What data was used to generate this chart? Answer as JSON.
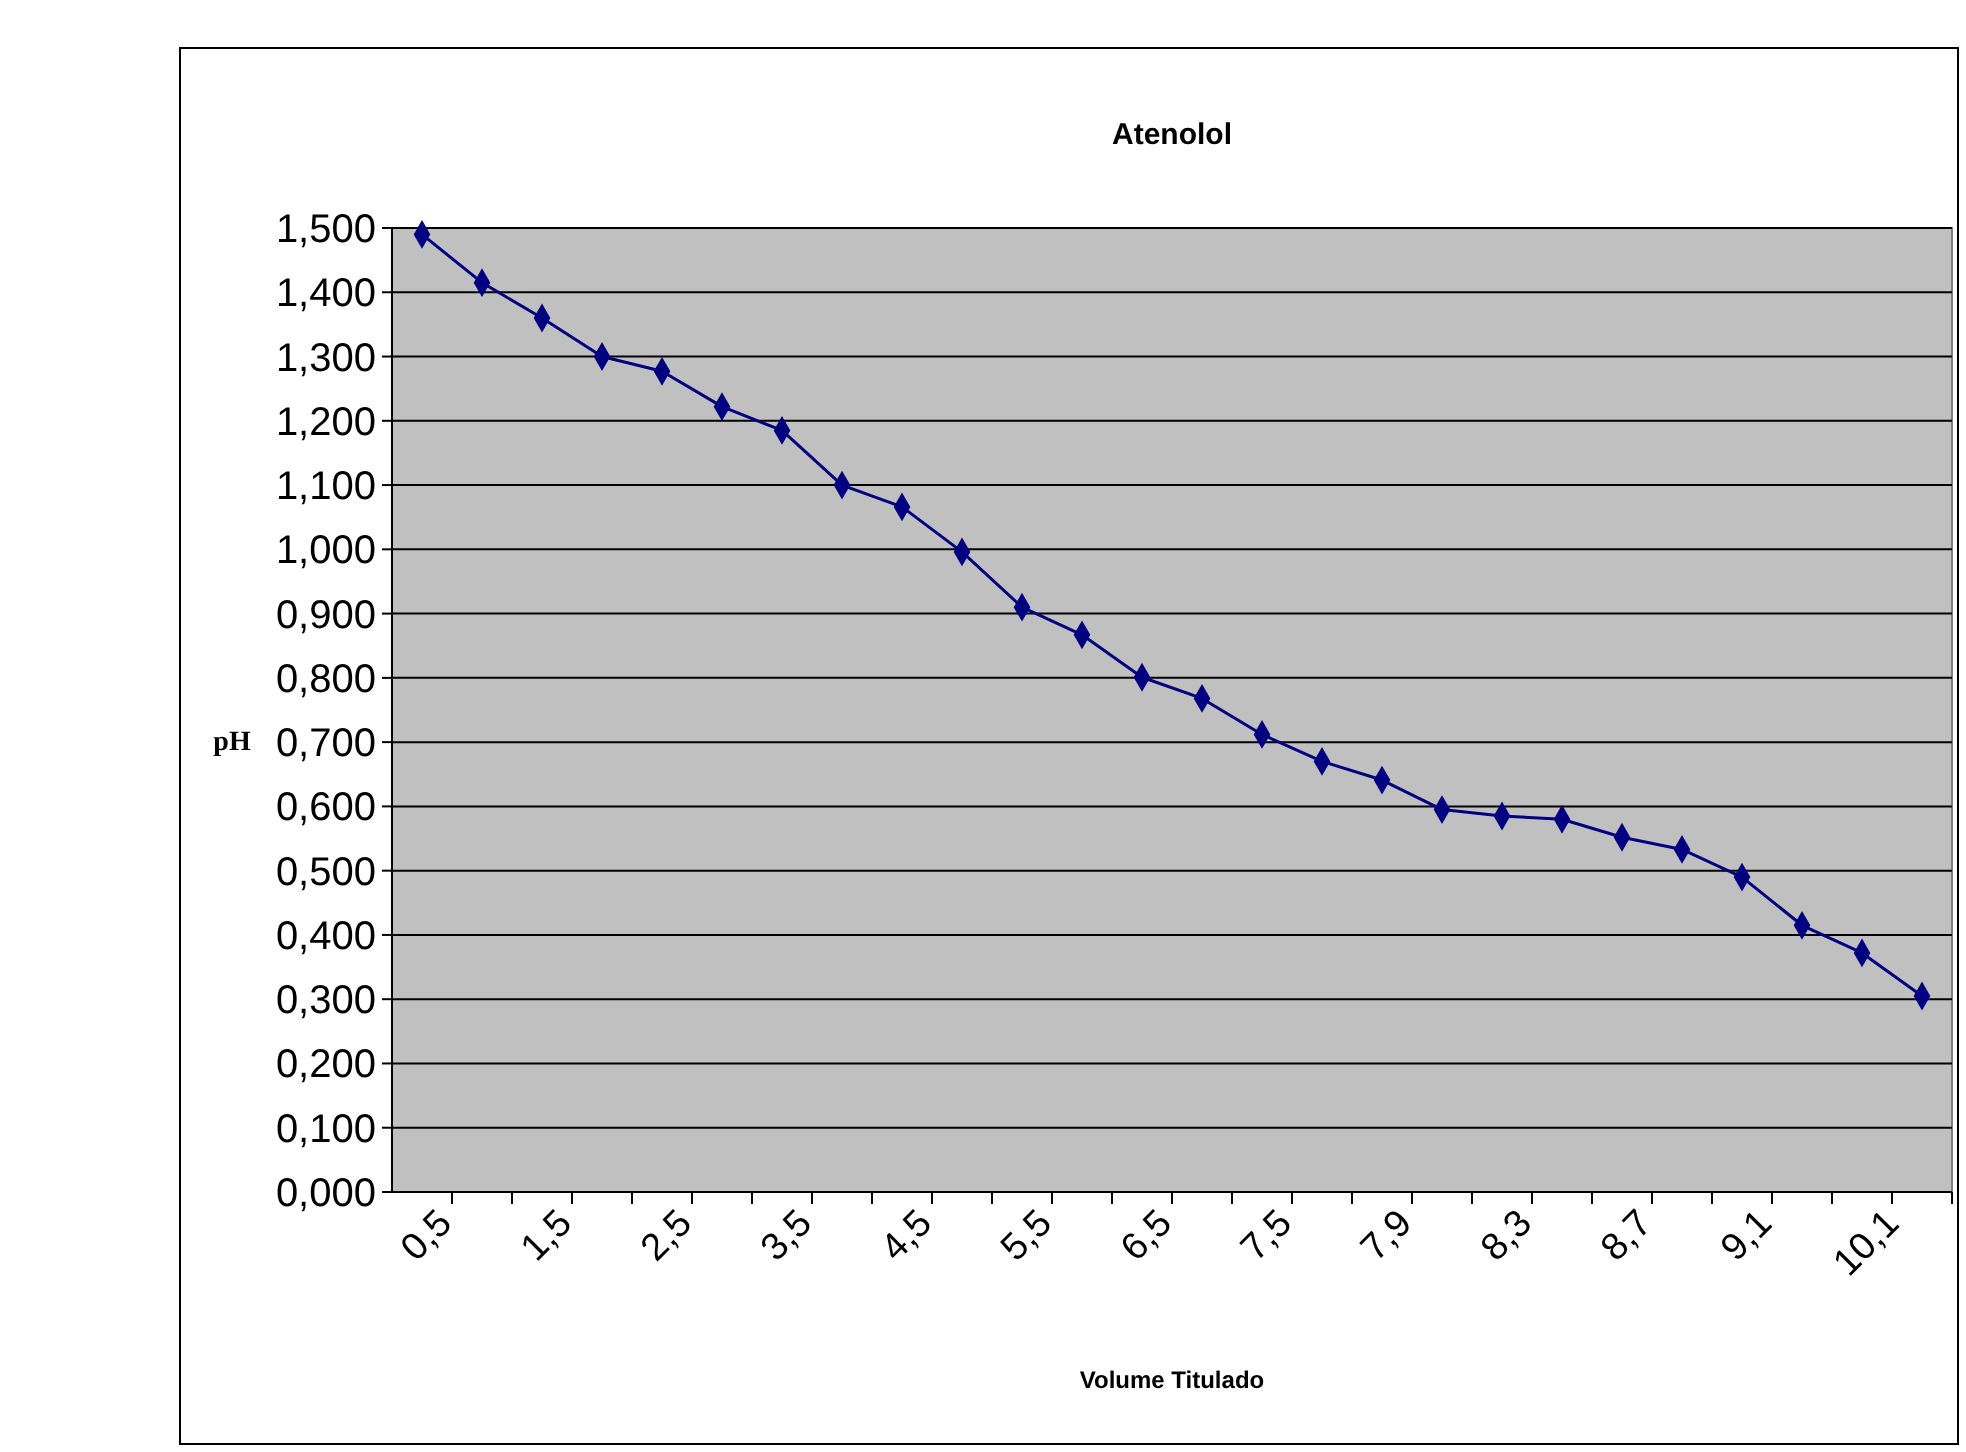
{
  "chart_data": {
    "type": "line",
    "title": "Atenolol",
    "xlabel": "Volume Titulado",
    "ylabel": "pH",
    "categories": [
      "0,5",
      null,
      "1,5",
      null,
      "2,5",
      null,
      "3,5",
      null,
      "4,5",
      null,
      "5,5",
      null,
      "6,5",
      null,
      "7,5",
      null,
      "7,9",
      null,
      "8,3",
      null,
      "8,7",
      null,
      "9,1",
      null,
      "10,1",
      null
    ],
    "series": [
      {
        "color": "#000080",
        "values": [
          1.49,
          1.415,
          1.36,
          1.3,
          1.277,
          1.222,
          1.185,
          1.1,
          1.066,
          0.996,
          0.91,
          0.867,
          0.801,
          0.768,
          0.712,
          0.67,
          0.641,
          0.595,
          0.585,
          0.58,
          0.552,
          0.533,
          0.49,
          0.415,
          0.372,
          0.305
        ]
      }
    ],
    "ylim": [
      0,
      1.5
    ],
    "yticks": [
      {
        "value": 0,
        "label": "0,000"
      },
      {
        "value": 0.1,
        "label": "0,100"
      },
      {
        "value": 0.2,
        "label": "0,200"
      },
      {
        "value": 0.3,
        "label": "0,300"
      },
      {
        "value": 0.4,
        "label": "0,400"
      },
      {
        "value": 0.5,
        "label": "0,500"
      },
      {
        "value": 0.6,
        "label": "0,600"
      },
      {
        "value": 0.7,
        "label": "0,700"
      },
      {
        "value": 0.8,
        "label": "0,800"
      },
      {
        "value": 0.9,
        "label": "0,900"
      },
      {
        "value": 1,
        "label": "1,000"
      },
      {
        "value": 1.1,
        "label": "1,100"
      },
      {
        "value": 1.2,
        "label": "1,200"
      },
      {
        "value": 1.3,
        "label": "1,300"
      },
      {
        "value": 1.4,
        "label": "1,400"
      },
      {
        "value": 1.5,
        "label": "1,500"
      }
    ],
    "grid": "y",
    "marker": "diamond",
    "line_style": "solid"
  }
}
